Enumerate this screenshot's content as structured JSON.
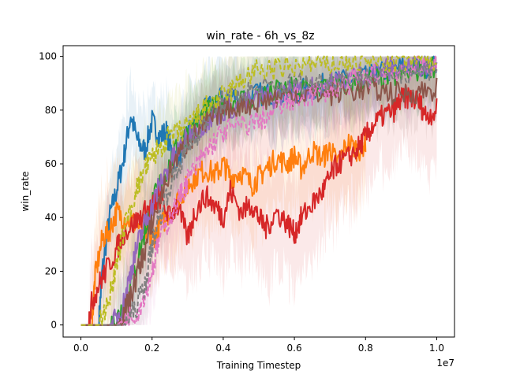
{
  "chart_data": {
    "type": "line",
    "title": "win_rate - 6h_vs_8z",
    "xlabel": "Training Timestep",
    "ylabel": "win_rate",
    "x_offset_label": "1e7",
    "xlim": [
      -0.05,
      1.05
    ],
    "ylim": [
      -4.5,
      104
    ],
    "xticks": [
      0.0,
      0.2,
      0.4,
      0.6,
      0.8,
      1.0
    ],
    "xtick_labels": [
      "0.0",
      "0.2",
      "0.4",
      "0.6",
      "0.8",
      "1.0"
    ],
    "yticks": [
      0,
      20,
      40,
      60,
      80,
      100
    ],
    "ytick_labels": [
      "0",
      "20",
      "40",
      "60",
      "80",
      "100"
    ],
    "grid": false,
    "legend": "none",
    "series": [
      {
        "color": "#1f77b4",
        "dashed": false,
        "band": 14,
        "x": [
          0.0,
          0.05,
          0.06,
          0.08,
          0.1,
          0.12,
          0.14,
          0.16,
          0.18,
          0.2,
          0.22,
          0.24,
          0.26,
          0.28,
          0.3,
          0.35,
          0.4,
          0.45,
          0.5,
          0.55,
          0.6,
          0.65,
          0.7,
          0.75,
          0.8,
          0.85,
          0.9,
          0.95,
          1.0
        ],
        "y": [
          0,
          0,
          20,
          40,
          50,
          62,
          78,
          68,
          65,
          76,
          70,
          72,
          62,
          64,
          72,
          80,
          85,
          85,
          86,
          86,
          87,
          88,
          90,
          91,
          92,
          94,
          96,
          96,
          97
        ]
      },
      {
        "color": "#ff7f0e",
        "dashed": false,
        "band": 18,
        "x": [
          0.0,
          0.03,
          0.04,
          0.06,
          0.08,
          0.1,
          0.12,
          0.15,
          0.18,
          0.2,
          0.22,
          0.25,
          0.28,
          0.3,
          0.32,
          0.35,
          0.38,
          0.4,
          0.42,
          0.45,
          0.48,
          0.5,
          0.52,
          0.55,
          0.58,
          0.6,
          0.62,
          0.65,
          0.68,
          0.7,
          0.72,
          0.75,
          0.78,
          0.8
        ],
        "y": [
          0,
          0,
          18,
          32,
          35,
          42,
          40,
          38,
          35,
          32,
          36,
          42,
          48,
          52,
          55,
          58,
          56,
          60,
          55,
          57,
          52,
          55,
          58,
          62,
          60,
          63,
          58,
          65,
          62,
          66,
          60,
          68,
          65,
          68
        ]
      },
      {
        "color": "#2ca02c",
        "dashed": false,
        "band": 12,
        "x": [
          0.0,
          0.08,
          0.1,
          0.12,
          0.15,
          0.18,
          0.2,
          0.22,
          0.25,
          0.28,
          0.3,
          0.33,
          0.36,
          0.4,
          0.45,
          0.5,
          0.55,
          0.6,
          0.65,
          0.7,
          0.75,
          0.8,
          0.85,
          0.9,
          0.95,
          1.0
        ],
        "y": [
          0,
          0,
          2,
          8,
          20,
          35,
          45,
          52,
          60,
          68,
          72,
          76,
          80,
          82,
          84,
          85,
          87,
          88,
          88,
          89,
          90,
          91,
          92,
          93,
          95,
          97
        ]
      },
      {
        "color": "#d62728",
        "dashed": false,
        "band": 20,
        "x": [
          0.0,
          0.02,
          0.03,
          0.05,
          0.07,
          0.1,
          0.12,
          0.15,
          0.18,
          0.2,
          0.22,
          0.25,
          0.27,
          0.3,
          0.32,
          0.35,
          0.38,
          0.4,
          0.42,
          0.45,
          0.48,
          0.5,
          0.52,
          0.55,
          0.58,
          0.6,
          0.62,
          0.65,
          0.68,
          0.7,
          0.72,
          0.75,
          0.78,
          0.8,
          0.82,
          0.85,
          0.88,
          0.9,
          0.92,
          0.95,
          0.97,
          1.0
        ],
        "y": [
          0,
          0,
          8,
          15,
          20,
          28,
          34,
          38,
          42,
          44,
          48,
          40,
          45,
          32,
          42,
          48,
          44,
          40,
          50,
          42,
          45,
          40,
          36,
          42,
          38,
          34,
          40,
          45,
          50,
          55,
          60,
          62,
          66,
          70,
          74,
          78,
          80,
          84,
          85,
          83,
          78,
          80
        ]
      },
      {
        "color": "#9467bd",
        "dashed": false,
        "band": 12,
        "x": [
          0.0,
          0.08,
          0.1,
          0.12,
          0.14,
          0.16,
          0.18,
          0.2,
          0.22,
          0.25,
          0.28,
          0.3,
          0.33,
          0.36,
          0.4,
          0.45,
          0.5,
          0.55,
          0.6,
          0.65,
          0.7,
          0.75,
          0.8,
          0.85,
          0.9,
          0.95,
          1.0
        ],
        "y": [
          0,
          0,
          2,
          8,
          20,
          30,
          38,
          44,
          52,
          60,
          66,
          70,
          74,
          76,
          80,
          82,
          84,
          85,
          87,
          88,
          90,
          92,
          94,
          95,
          96,
          97,
          98
        ]
      },
      {
        "color": "#8c564b",
        "dashed": false,
        "band": 12,
        "x": [
          0.0,
          0.1,
          0.12,
          0.14,
          0.16,
          0.18,
          0.2,
          0.23,
          0.26,
          0.3,
          0.33,
          0.36,
          0.4,
          0.45,
          0.5,
          0.55,
          0.6,
          0.65,
          0.7,
          0.75,
          0.8,
          0.85,
          0.9,
          0.95,
          1.0
        ],
        "y": [
          0,
          0,
          4,
          10,
          20,
          28,
          38,
          50,
          60,
          68,
          72,
          76,
          80,
          82,
          83,
          85,
          86,
          86,
          86,
          87,
          88,
          87,
          86,
          87,
          88
        ]
      },
      {
        "color": "#e377c2",
        "dashed": true,
        "band": 14,
        "x": [
          0.0,
          0.1,
          0.13,
          0.16,
          0.18,
          0.2,
          0.22,
          0.25,
          0.28,
          0.3,
          0.33,
          0.36,
          0.4,
          0.45,
          0.5,
          0.55,
          0.6,
          0.65,
          0.7,
          0.75,
          0.8,
          0.85,
          0.9,
          0.95,
          1.0
        ],
        "y": [
          0,
          0,
          2,
          5,
          12,
          20,
          32,
          40,
          48,
          54,
          60,
          66,
          72,
          74,
          76,
          80,
          84,
          86,
          88,
          90,
          92,
          94,
          95,
          96,
          97
        ]
      },
      {
        "color": "#7f7f7f",
        "dashed": true,
        "band": 14,
        "x": [
          0.0,
          0.12,
          0.15,
          0.18,
          0.2,
          0.22,
          0.25,
          0.28,
          0.3,
          0.33,
          0.36,
          0.4,
          0.45,
          0.5,
          0.55,
          0.6,
          0.65,
          0.7,
          0.75,
          0.8,
          0.85,
          0.9,
          0.95,
          1.0
        ],
        "y": [
          0,
          0,
          5,
          15,
          30,
          40,
          52,
          60,
          66,
          72,
          78,
          84,
          86,
          88,
          88,
          90,
          90,
          91,
          92,
          92,
          93,
          94,
          95,
          96
        ]
      },
      {
        "color": "#bcbd22",
        "dashed": true,
        "band": 14,
        "x": [
          0.0,
          0.05,
          0.08,
          0.1,
          0.12,
          0.15,
          0.18,
          0.2,
          0.22,
          0.25,
          0.28,
          0.3,
          0.33,
          0.36,
          0.4,
          0.43,
          0.46,
          0.5,
          0.55,
          0.6,
          0.65,
          0.7,
          0.75,
          0.8,
          0.85,
          0.9,
          0.95,
          1.0
        ],
        "y": [
          0,
          0,
          10,
          22,
          35,
          48,
          58,
          62,
          66,
          70,
          72,
          74,
          78,
          82,
          85,
          88,
          92,
          95,
          95,
          96,
          97,
          97,
          98,
          98,
          98,
          98,
          99,
          99
        ]
      }
    ]
  }
}
